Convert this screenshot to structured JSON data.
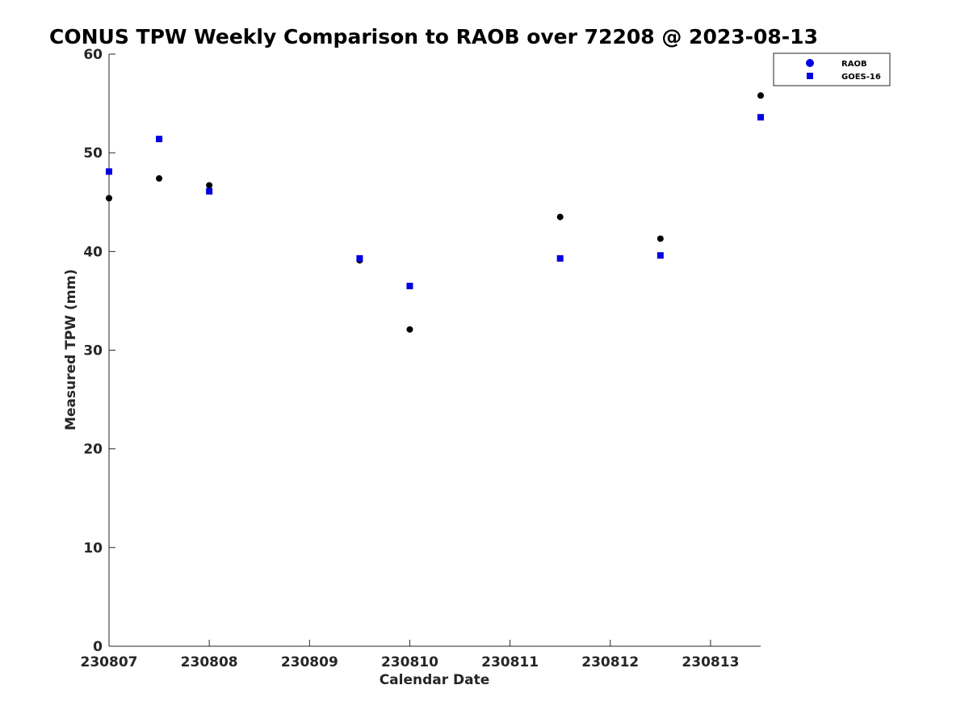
{
  "chart_data": {
    "type": "scatter",
    "title": "CONUS TPW Weekly Comparison to RAOB over 72208 @ 2023-08-13",
    "xlabel": "Calendar Date",
    "ylabel": "Measured TPW (mm)",
    "x_ticks": [
      "230807",
      "230808",
      "230809",
      "230810",
      "230811",
      "230812",
      "230813"
    ],
    "xlim": [
      "2023-08-07T00:00",
      "2023-08-13T12:00"
    ],
    "y_ticks": [
      0,
      10,
      20,
      30,
      40,
      50,
      60
    ],
    "ylim": [
      0,
      60
    ],
    "grid": false,
    "legend": "top-right",
    "series": [
      {
        "name": "RAOB",
        "marker": "circle",
        "color": "#000000",
        "legend_color": "#0000e0",
        "points": [
          {
            "x": "2023-08-07T00:00",
            "y": 45.4
          },
          {
            "x": "2023-08-07T12:00",
            "y": 47.4
          },
          {
            "x": "2023-08-08T00:00",
            "y": 46.7
          },
          {
            "x": "2023-08-09T12:00",
            "y": 39.1
          },
          {
            "x": "2023-08-10T00:00",
            "y": 32.1
          },
          {
            "x": "2023-08-11T12:00",
            "y": 43.5
          },
          {
            "x": "2023-08-12T12:00",
            "y": 41.3
          },
          {
            "x": "2023-08-13T12:00",
            "y": 55.8
          }
        ]
      },
      {
        "name": "GOES-16",
        "marker": "square",
        "color": "#0000e0",
        "points": [
          {
            "x": "2023-08-07T00:00",
            "y": 48.1
          },
          {
            "x": "2023-08-07T12:00",
            "y": 51.4
          },
          {
            "x": "2023-08-08T00:00",
            "y": 46.1
          },
          {
            "x": "2023-08-09T12:00",
            "y": 39.3
          },
          {
            "x": "2023-08-10T00:00",
            "y": 36.5
          },
          {
            "x": "2023-08-11T12:00",
            "y": 39.3
          },
          {
            "x": "2023-08-12T12:00",
            "y": 39.6
          },
          {
            "x": "2023-08-13T12:00",
            "y": 53.6
          }
        ]
      }
    ]
  }
}
